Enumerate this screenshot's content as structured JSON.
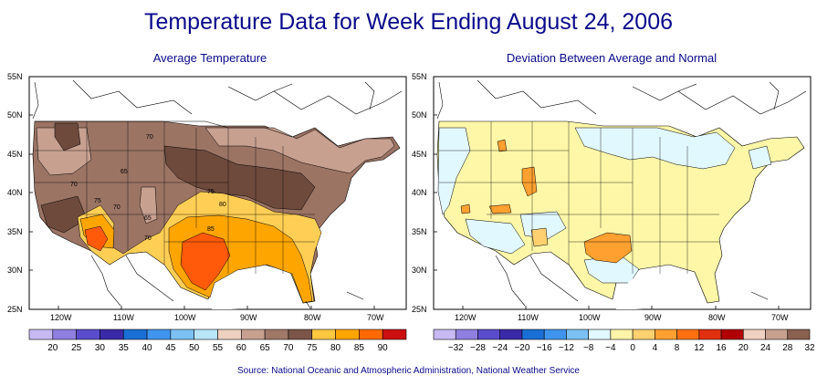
{
  "title": "Temperature Data for Week Ending August 24, 2006",
  "left_map": {
    "subtitle": "Average Temperature",
    "lat_labels": [
      "55N",
      "50N",
      "45N",
      "40N",
      "35N",
      "30N",
      "25N"
    ],
    "lon_labels": [
      "120W",
      "110W",
      "100W",
      "90W",
      "80W",
      "70W"
    ],
    "contour_labels": [
      "70",
      "65",
      "70",
      "75",
      "65",
      "70",
      "75",
      "80",
      "85",
      "70"
    ],
    "legend": {
      "colors": [
        "#c7b9f2",
        "#8f7fe0",
        "#5a4ccc",
        "#3a2aa8",
        "#1a6fd6",
        "#3f95ee",
        "#7cc1f4",
        "#b8e6f8",
        "#eed0c0",
        "#c8a090",
        "#a07868",
        "#7a5548",
        "#ffc840",
        "#ffa500",
        "#ff6a00",
        "#cc1010"
      ],
      "labels": [
        "20",
        "25",
        "30",
        "35",
        "40",
        "45",
        "50",
        "55",
        "60",
        "65",
        "70",
        "75",
        "80",
        "85",
        "90"
      ]
    }
  },
  "right_map": {
    "subtitle": "Deviation Between Average and Normal",
    "lat_labels": [
      "55N",
      "50N",
      "45N",
      "40N",
      "35N",
      "30N",
      "25N"
    ],
    "lon_labels": [
      "120W",
      "110W",
      "100W",
      "90W",
      "80W",
      "70W"
    ],
    "legend": {
      "colors": [
        "#c7b9f2",
        "#8f7fe0",
        "#5a4ccc",
        "#3a2aa8",
        "#1a6fd6",
        "#3f95ee",
        "#7cc1f4",
        "#e0f8ff",
        "#fff4a8",
        "#ffd070",
        "#ffa030",
        "#ff7010",
        "#e03010",
        "#b00000",
        "#f0d0c0",
        "#c8a090",
        "#8a6050"
      ],
      "labels": [
        "−32",
        "−28",
        "−24",
        "−20",
        "−16",
        "−12",
        "−8",
        "−4",
        "0",
        "4",
        "8",
        "12",
        "16",
        "20",
        "24",
        "28",
        "32"
      ]
    }
  },
  "source": "Source:  National Oceanic and Atmospheric Administration, National Weather Service"
}
